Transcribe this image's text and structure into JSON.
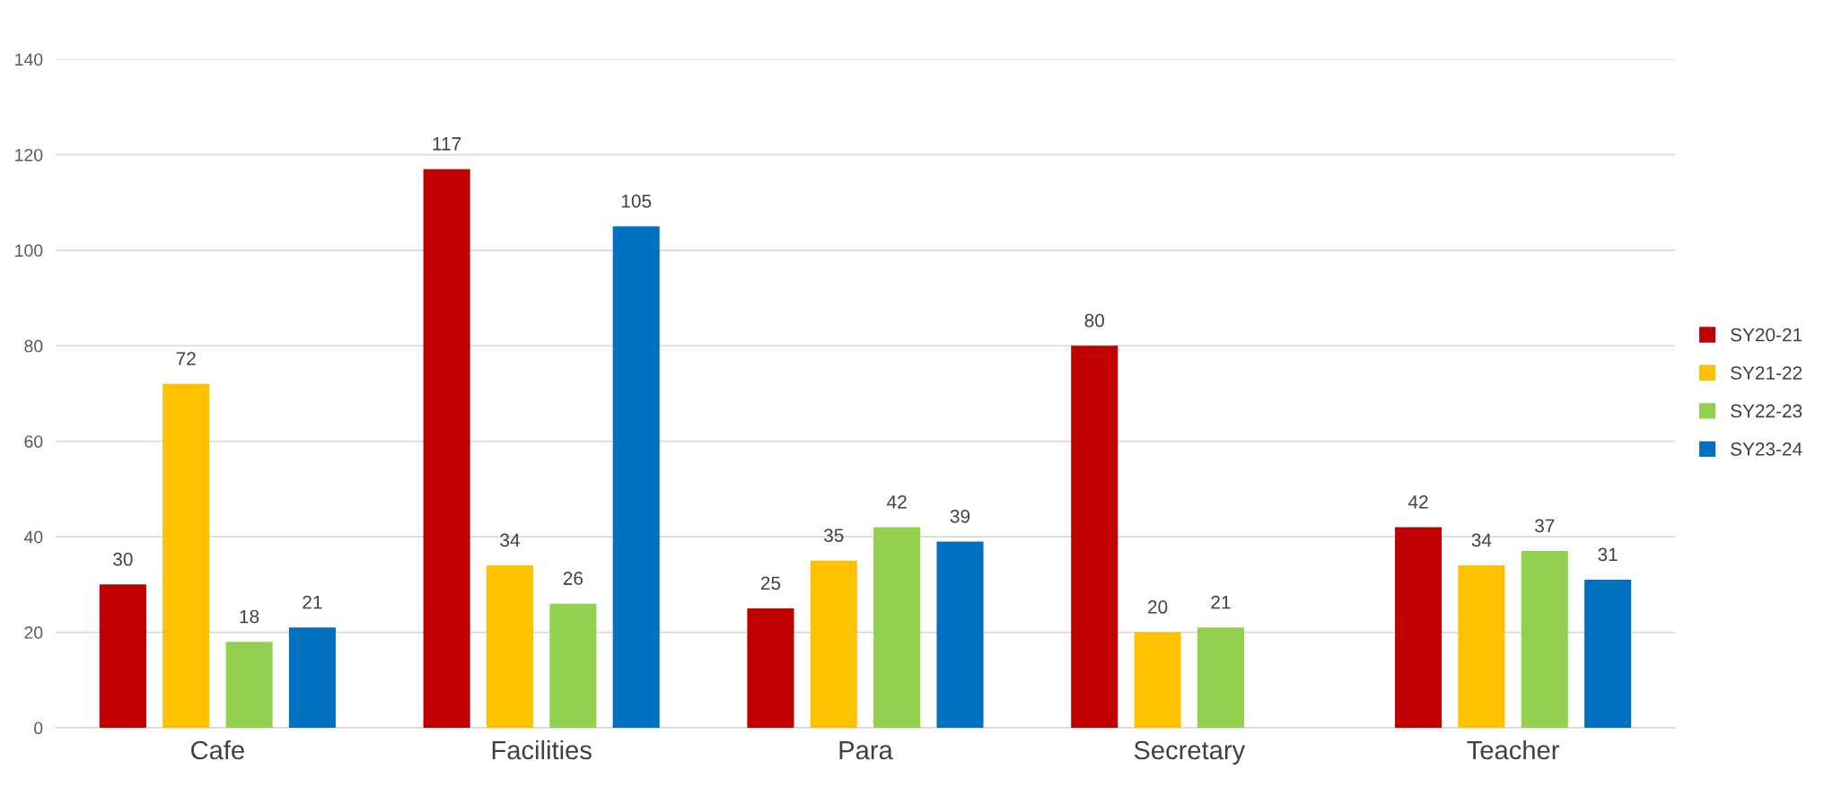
{
  "chart_data": {
    "type": "bar",
    "categories": [
      "Cafe",
      "Facilities",
      "Para",
      "Secretary",
      "Teacher"
    ],
    "series": [
      {
        "name": "SY20-21",
        "color": "#c00000",
        "values": [
          30,
          117,
          25,
          80,
          42
        ]
      },
      {
        "name": "SY21-22",
        "color": "#ffc000",
        "values": [
          72,
          34,
          35,
          20,
          34
        ]
      },
      {
        "name": "SY22-23",
        "color": "#92d050",
        "values": [
          18,
          26,
          42,
          21,
          37
        ]
      },
      {
        "name": "SY23-24",
        "color": "#0070c0",
        "values": [
          21,
          105,
          39,
          null,
          31
        ]
      }
    ],
    "ylim": [
      0,
      140
    ],
    "yticks": [
      0,
      20,
      40,
      60,
      80,
      100,
      120,
      140
    ],
    "grid": "y",
    "legend": "right",
    "data_labels": true
  }
}
